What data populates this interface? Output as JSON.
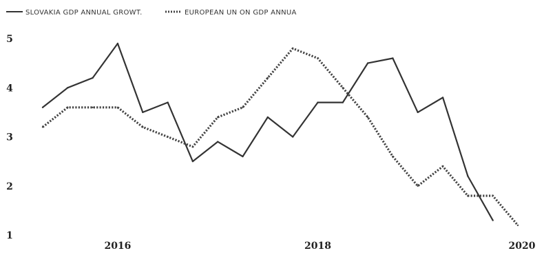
{
  "chart_data": {
    "type": "line",
    "title": "",
    "xlabel": "",
    "ylabel": "",
    "legend_position": "top-left",
    "grid": false,
    "source_note": "",
    "xlim": [
      2015.1,
      2020.0
    ],
    "ylim": [
      1.0,
      5.0
    ],
    "x_ticks": [
      {
        "value": 2016,
        "label": "2016"
      },
      {
        "value": 2018,
        "label": "2018"
      },
      {
        "value": 2020,
        "label": "2020"
      }
    ],
    "y_ticks": [
      {
        "value": 5,
        "label": "5"
      },
      {
        "value": 4,
        "label": "4"
      },
      {
        "value": 3,
        "label": "3"
      },
      {
        "value": 2,
        "label": "2"
      },
      {
        "value": 1,
        "label": "1"
      }
    ],
    "series": [
      {
        "name": "SLOVAKIA GDP ANNUAL GROWT.",
        "style": "solid",
        "color": "#333333",
        "points": [
          [
            2015.25,
            3.6
          ],
          [
            2015.5,
            4.0
          ],
          [
            2015.75,
            4.2
          ],
          [
            2016.0,
            4.9
          ],
          [
            2016.25,
            3.5
          ],
          [
            2016.5,
            3.7
          ],
          [
            2016.75,
            2.5
          ],
          [
            2017.0,
            2.9
          ],
          [
            2017.25,
            2.6
          ],
          [
            2017.5,
            3.4
          ],
          [
            2017.75,
            3.0
          ],
          [
            2018.0,
            3.7
          ],
          [
            2018.25,
            3.7
          ],
          [
            2018.5,
            4.5
          ],
          [
            2018.75,
            4.6
          ],
          [
            2019.0,
            3.5
          ],
          [
            2019.25,
            3.8
          ],
          [
            2019.5,
            2.2
          ],
          [
            2019.75,
            1.3
          ]
        ]
      },
      {
        "name": "EUROPEAN UN ON GDP ANNUA",
        "style": "dotted",
        "color": "#444444",
        "points": [
          [
            2015.25,
            3.2
          ],
          [
            2015.5,
            3.6
          ],
          [
            2015.75,
            3.6
          ],
          [
            2016.0,
            3.6
          ],
          [
            2016.25,
            3.2
          ],
          [
            2016.5,
            3.0
          ],
          [
            2016.75,
            2.8
          ],
          [
            2017.0,
            3.4
          ],
          [
            2017.25,
            3.6
          ],
          [
            2017.5,
            4.2
          ],
          [
            2017.75,
            4.8
          ],
          [
            2018.0,
            4.6
          ],
          [
            2018.25,
            4.0
          ],
          [
            2018.5,
            3.4
          ],
          [
            2018.75,
            2.6
          ],
          [
            2019.0,
            2.0
          ],
          [
            2019.25,
            2.4
          ],
          [
            2019.5,
            1.8
          ],
          [
            2019.75,
            1.8
          ],
          [
            2020.0,
            1.2
          ]
        ]
      }
    ]
  }
}
